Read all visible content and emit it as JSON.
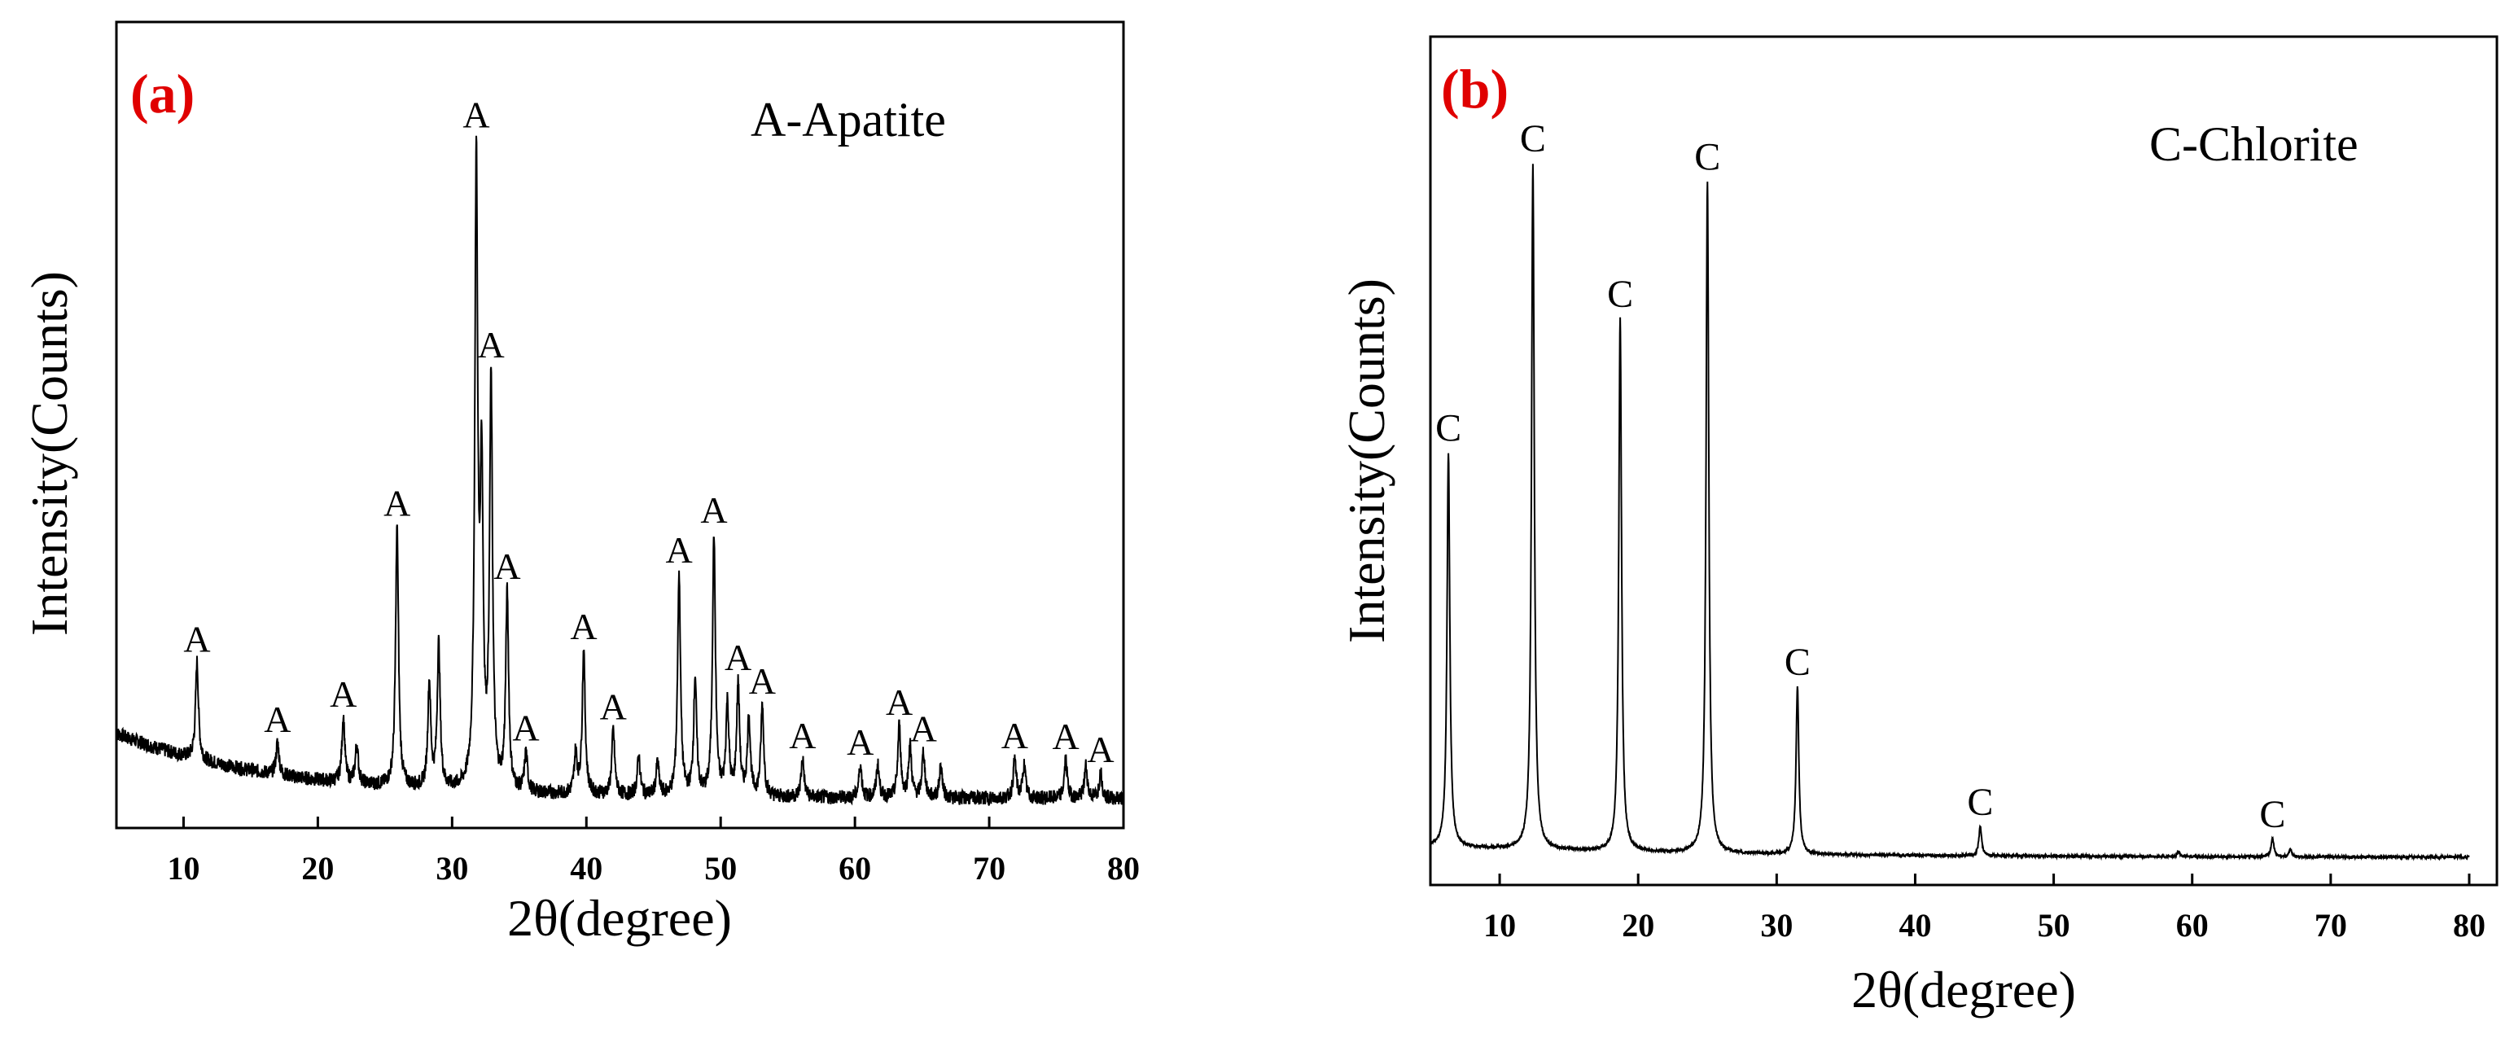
{
  "chart_data": [
    {
      "type": "line",
      "panel_label": "(a)",
      "panel_label_color": "#e00000",
      "legend_text": "A-Apatite",
      "peak_symbol": "A",
      "xlabel": "2θ(degree)",
      "ylabel": "Intensity(Counts)",
      "xlim": [
        5,
        80
      ],
      "ylim": [
        0,
        100
      ],
      "xticks": [
        10,
        20,
        30,
        40,
        50,
        60,
        70,
        80
      ],
      "xtick_labels": [
        "10",
        "20",
        "30",
        "40",
        "50",
        "60",
        "70",
        "80"
      ],
      "background": {
        "start": 13,
        "end": 3,
        "decay": 12
      },
      "peaks": [
        {
          "x": 11.0,
          "height": 15,
          "labeled": true
        },
        {
          "x": 17.0,
          "height": 5,
          "labeled": true
        },
        {
          "x": 21.9,
          "height": 10,
          "labeled": true
        },
        {
          "x": 22.9,
          "height": 6,
          "labeled": false
        },
        {
          "x": 25.9,
          "height": 40,
          "labeled": true
        },
        {
          "x": 28.3,
          "height": 16,
          "labeled": false
        },
        {
          "x": 29.0,
          "height": 22,
          "labeled": false
        },
        {
          "x": 31.8,
          "height": 95,
          "labeled": true
        },
        {
          "x": 32.2,
          "height": 46,
          "labeled": false
        },
        {
          "x": 32.9,
          "height": 62,
          "labeled": true
        },
        {
          "x": 34.1,
          "height": 30,
          "labeled": true
        },
        {
          "x": 35.5,
          "height": 6,
          "labeled": true
        },
        {
          "x": 39.2,
          "height": 6,
          "labeled": false
        },
        {
          "x": 39.8,
          "height": 22,
          "labeled": true
        },
        {
          "x": 42.0,
          "height": 10,
          "labeled": true
        },
        {
          "x": 43.9,
          "height": 6,
          "labeled": false
        },
        {
          "x": 45.3,
          "height": 5,
          "labeled": false
        },
        {
          "x": 46.9,
          "height": 34,
          "labeled": true
        },
        {
          "x": 48.1,
          "height": 18,
          "labeled": false
        },
        {
          "x": 49.5,
          "height": 40,
          "labeled": true
        },
        {
          "x": 50.5,
          "height": 14,
          "labeled": false
        },
        {
          "x": 51.3,
          "height": 17,
          "labeled": true
        },
        {
          "x": 52.1,
          "height": 12,
          "labeled": false
        },
        {
          "x": 53.1,
          "height": 14,
          "labeled": true
        },
        {
          "x": 56.1,
          "height": 6,
          "labeled": true
        },
        {
          "x": 60.4,
          "height": 5,
          "labeled": true
        },
        {
          "x": 61.7,
          "height": 5,
          "labeled": false
        },
        {
          "x": 63.3,
          "height": 11,
          "labeled": true
        },
        {
          "x": 64.1,
          "height": 8,
          "labeled": false
        },
        {
          "x": 65.1,
          "height": 7,
          "labeled": true
        },
        {
          "x": 66.4,
          "height": 5,
          "labeled": false
        },
        {
          "x": 71.9,
          "height": 6,
          "labeled": true
        },
        {
          "x": 72.6,
          "height": 5,
          "labeled": false
        },
        {
          "x": 75.7,
          "height": 6,
          "labeled": true
        },
        {
          "x": 77.2,
          "height": 5,
          "labeled": false
        },
        {
          "x": 78.3,
          "height": 4,
          "labeled": true
        }
      ]
    },
    {
      "type": "line",
      "panel_label": "(b)",
      "panel_label_color": "#e00000",
      "legend_text": "C-Chlorite",
      "peak_symbol": "C",
      "xlabel": "2θ(degree)",
      "ylabel": "Intensity(Counts)",
      "xlim": [
        5,
        82
      ],
      "ylim": [
        0,
        100
      ],
      "xticks": [
        10,
        20,
        30,
        40,
        50,
        60,
        70,
        80
      ],
      "xtick_labels": [
        "10",
        "20",
        "30",
        "40",
        "50",
        "60",
        "70",
        "80"
      ],
      "background": {
        "start": 2.5,
        "end": 1,
        "decay": 20
      },
      "peaks": [
        {
          "x": 6.3,
          "height": 54,
          "labeled": true
        },
        {
          "x": 12.4,
          "height": 94,
          "labeled": true
        },
        {
          "x": 18.7,
          "height": 73,
          "labeled": true
        },
        {
          "x": 25.0,
          "height": 92,
          "labeled": true
        },
        {
          "x": 31.5,
          "height": 23,
          "labeled": true
        },
        {
          "x": 44.7,
          "height": 4,
          "labeled": true
        },
        {
          "x": 65.8,
          "height": 2.5,
          "labeled": true
        },
        {
          "x": 67.1,
          "height": 1,
          "labeled": false
        },
        {
          "x": 59.0,
          "height": 0.7,
          "labeled": false
        }
      ]
    }
  ]
}
